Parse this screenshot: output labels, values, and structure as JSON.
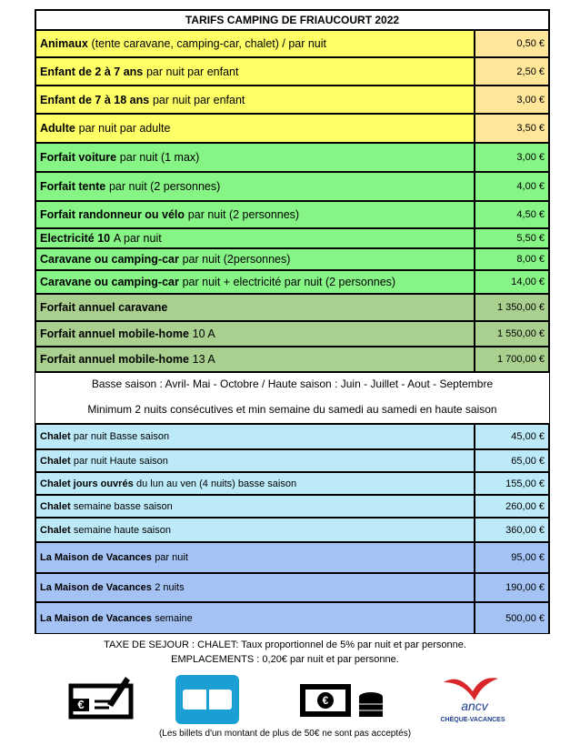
{
  "title": "TARIFS CAMPING DE FRIAUCOURT 2022",
  "rows": [
    {
      "bold": "Animaux",
      "text": "(tente caravane, camping-car, chalet) / par nuit",
      "price": "0,50 €"
    },
    {
      "bold": "Enfant de 2 à 7 ans",
      "text": "par nuit par enfant",
      "price": "2,50 €"
    },
    {
      "bold": "Enfant de 7 à 18 ans",
      "text": "par nuit par enfant",
      "price": "3,00 €"
    },
    {
      "bold": "Adulte",
      "text": "par nuit par adulte",
      "price": "3,50 €"
    },
    {
      "bold": "Forfait voiture",
      "text": "par nuit (1 max)",
      "price": "3,00 €"
    },
    {
      "bold": "Forfait tente",
      "text": "par nuit (2 personnes)",
      "price": "4,00 €"
    },
    {
      "bold": "Forfait randonneur ou vélo",
      "text": "par nuit (2 personnes)",
      "price": "4,50 €"
    },
    {
      "bold": "Electricité 10",
      "text": "A par nuit",
      "price": "5,50 €"
    },
    {
      "bold": "Caravane ou camping-car",
      "text": "par nuit (2personnes)",
      "price": "8,00 €"
    },
    {
      "bold": "Caravane ou camping-car",
      "text": "par nuit + electricité par nuit (2 personnes)",
      "price": "14,00 €"
    },
    {
      "bold": "Forfait annuel caravane",
      "price": "1 350,00 €"
    },
    {
      "bold": "Forfait annuel mobile-home",
      "text": "10 A",
      "price": "1 550,00 €"
    },
    {
      "bold": "Forfait annuel mobile-home",
      "text": "13 A",
      "price": "1 700,00 €"
    }
  ],
  "notes": [
    "Basse saison : Avril- Mai - Octobre / Haute saison : Juin - Juillet - Aout - Septembre",
    "Minimum 2 nuits consécutives et min semaine du samedi au samedi en haute saison"
  ],
  "chalet_rows": [
    {
      "bold": "Chalet",
      "text": "par nuit Basse saison",
      "price": "45,00 €"
    },
    {
      "bold": "Chalet",
      "text": "par nuit Haute saison",
      "price": "65,00 €"
    },
    {
      "bold": "Chalet jours ouvrés",
      "text": "du lun au ven (4 nuits) basse saison",
      "price": "155,00 €"
    },
    {
      "bold": "Chalet",
      "text": "semaine basse saison",
      "price": "260,00 €"
    },
    {
      "bold": "Chalet",
      "text": "semaine haute saison",
      "price": "360,00 €"
    }
  ],
  "maison_rows": [
    {
      "bold": "La Maison de Vacances",
      "text": "par nuit",
      "price": "95,00 €"
    },
    {
      "bold": "La Maison de Vacances",
      "text": "2 nuits",
      "price": "190,00 €"
    },
    {
      "bold": "La Maison de Vacances",
      "text": "semaine",
      "price": "500,00 €"
    }
  ],
  "taxes": [
    "TAXE DE SEJOUR : CHALET: Taux proportionnel de 5% par nuit et par personne.",
    "EMPLACEMENTS : 0,20€ par nuit et par personne."
  ],
  "icons": {
    "cheque": "€",
    "cash": "€",
    "ancv": "ancv",
    "ancv_sub": "CHÈQUE-VACANCES"
  },
  "footer": "(Les billets d'un montant de plus de 50€ ne sont pas acceptés)"
}
